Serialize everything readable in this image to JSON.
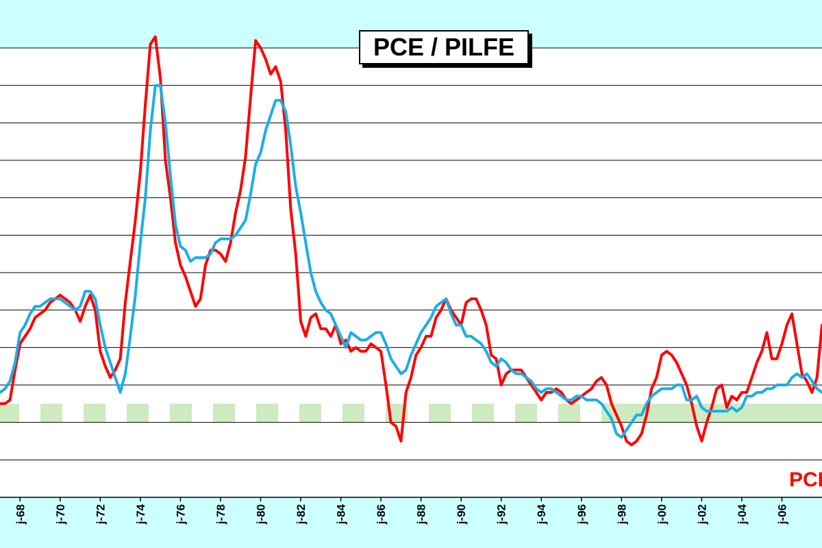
{
  "chart_data": {
    "type": "line",
    "title": "PCE / PILFE",
    "xlabel": "",
    "ylabel": "",
    "xlim": [
      1967.0,
      2008.0
    ],
    "ylim": [
      -1,
      11
    ],
    "grid": true,
    "tick_labels": [
      "j-68",
      "j-70",
      "j-72",
      "j-74",
      "j-76",
      "j-78",
      "j-80",
      "j-82",
      "j-84",
      "j-86",
      "j-88",
      "j-90",
      "j-92",
      "j-94",
      "j-96",
      "j-98",
      "j-00",
      "j-02",
      "j-04",
      "j-06"
    ],
    "tick_positions": [
      1968,
      1970,
      1972,
      1974,
      1976,
      1978,
      1980,
      1982,
      1984,
      1986,
      1988,
      1990,
      1992,
      1994,
      1996,
      1998,
      2000,
      2002,
      2004,
      2006
    ],
    "target_band": [
      1.0,
      1.5
    ],
    "series": [
      {
        "name": "PCE",
        "color": "#ff0000",
        "x": [
          1967.0,
          1967.25,
          1967.5,
          1967.75,
          1968.0,
          1968.25,
          1968.5,
          1968.75,
          1969.0,
          1969.25,
          1969.5,
          1969.75,
          1970.0,
          1970.25,
          1970.5,
          1970.75,
          1971.0,
          1971.25,
          1971.5,
          1971.75,
          1972.0,
          1972.25,
          1972.5,
          1972.75,
          1973.0,
          1973.25,
          1973.5,
          1973.75,
          1974.0,
          1974.25,
          1974.5,
          1974.75,
          1975.0,
          1975.25,
          1975.5,
          1975.75,
          1976.0,
          1976.25,
          1976.5,
          1976.75,
          1977.0,
          1977.25,
          1977.5,
          1977.75,
          1978.0,
          1978.25,
          1978.5,
          1978.75,
          1979.0,
          1979.25,
          1979.5,
          1979.75,
          1980.0,
          1980.25,
          1980.5,
          1980.75,
          1981.0,
          1981.25,
          1981.5,
          1981.75,
          1982.0,
          1982.25,
          1982.5,
          1982.75,
          1983.0,
          1983.25,
          1983.5,
          1983.75,
          1984.0,
          1984.25,
          1984.5,
          1984.75,
          1985.0,
          1985.25,
          1985.5,
          1985.75,
          1986.0,
          1986.25,
          1986.5,
          1986.75,
          1987.0,
          1987.25,
          1987.5,
          1987.75,
          1988.0,
          1988.25,
          1988.5,
          1988.75,
          1989.0,
          1989.25,
          1989.5,
          1989.75,
          1990.0,
          1990.25,
          1990.5,
          1990.75,
          1991.0,
          1991.25,
          1991.5,
          1991.75,
          1992.0,
          1992.25,
          1992.5,
          1992.75,
          1993.0,
          1993.25,
          1993.5,
          1993.75,
          1994.0,
          1994.25,
          1994.5,
          1994.75,
          1995.0,
          1995.25,
          1995.5,
          1995.75,
          1996.0,
          1996.25,
          1996.5,
          1996.75,
          1997.0,
          1997.25,
          1997.5,
          1997.75,
          1998.0,
          1998.25,
          1998.5,
          1998.75,
          1999.0,
          1999.25,
          1999.5,
          1999.75,
          2000.0,
          2000.25,
          2000.5,
          2000.75,
          2001.0,
          2001.25,
          2001.5,
          2001.75,
          2002.0,
          2002.25,
          2002.5,
          2002.75,
          2003.0,
          2003.25,
          2003.5,
          2003.75,
          2004.0,
          2004.25,
          2004.5,
          2004.75,
          2005.0,
          2005.25,
          2005.5,
          2005.75,
          2006.0,
          2006.25,
          2006.5,
          2006.75,
          2007.0,
          2007.25,
          2007.5,
          2007.75,
          2008.0
        ],
        "values": [
          1.5,
          1.5,
          1.6,
          2.4,
          3.1,
          3.3,
          3.5,
          3.8,
          3.9,
          4.0,
          4.2,
          4.3,
          4.4,
          4.3,
          4.2,
          4.0,
          3.7,
          4.1,
          4.4,
          4.0,
          2.9,
          2.5,
          2.2,
          2.4,
          2.7,
          4.2,
          5.3,
          6.4,
          7.7,
          9.5,
          11.1,
          11.3,
          10.2,
          8.0,
          7.0,
          5.8,
          5.2,
          4.9,
          4.5,
          4.1,
          4.3,
          5.2,
          5.6,
          5.6,
          5.5,
          5.3,
          5.8,
          6.6,
          7.2,
          8.1,
          9.7,
          11.2,
          11.0,
          10.7,
          10.3,
          10.5,
          10.1,
          8.8,
          6.7,
          5.5,
          3.7,
          3.3,
          3.8,
          3.9,
          3.5,
          3.5,
          3.3,
          3.6,
          3.1,
          3.2,
          2.9,
          3.0,
          2.9,
          2.9,
          3.1,
          3.0,
          2.9,
          2.0,
          1.0,
          0.9,
          0.5,
          1.8,
          2.2,
          2.8,
          3.0,
          3.3,
          3.3,
          3.8,
          4.0,
          4.3,
          4.0,
          3.8,
          3.6,
          4.2,
          4.3,
          4.3,
          4.0,
          3.6,
          2.8,
          2.7,
          2.0,
          2.3,
          2.4,
          2.4,
          2.4,
          2.2,
          2.0,
          1.8,
          1.6,
          1.8,
          1.8,
          1.9,
          1.8,
          1.6,
          1.5,
          1.6,
          1.7,
          1.8,
          1.9,
          2.1,
          2.2,
          2.0,
          1.5,
          1.2,
          0.9,
          0.5,
          0.4,
          0.5,
          0.7,
          1.2,
          1.9,
          2.2,
          2.8,
          2.9,
          2.8,
          2.6,
          2.3,
          2.0,
          1.5,
          0.9,
          0.5,
          1.0,
          1.4,
          1.9,
          2.0,
          1.4,
          1.7,
          1.6,
          1.8,
          1.8,
          2.2,
          2.6,
          2.9,
          3.4,
          2.7,
          2.7,
          3.1,
          3.6,
          3.9,
          3.1,
          2.3,
          2.1,
          1.8,
          2.2,
          3.6
        ]
      },
      {
        "name": "PILFE",
        "color": "#1aaee6",
        "x": [
          1967.0,
          1967.25,
          1967.5,
          1967.75,
          1968.0,
          1968.25,
          1968.5,
          1968.75,
          1969.0,
          1969.25,
          1969.5,
          1969.75,
          1970.0,
          1970.25,
          1970.5,
          1970.75,
          1971.0,
          1971.25,
          1971.5,
          1971.75,
          1972.0,
          1972.25,
          1972.5,
          1972.75,
          1973.0,
          1973.25,
          1973.5,
          1973.75,
          1974.0,
          1974.25,
          1974.5,
          1974.75,
          1975.0,
          1975.25,
          1975.5,
          1975.75,
          1976.0,
          1976.25,
          1976.5,
          1976.75,
          1977.0,
          1977.25,
          1977.5,
          1977.75,
          1978.0,
          1978.25,
          1978.5,
          1978.75,
          1979.0,
          1979.25,
          1979.5,
          1979.75,
          1980.0,
          1980.25,
          1980.5,
          1980.75,
          1981.0,
          1981.25,
          1981.5,
          1981.75,
          1982.0,
          1982.25,
          1982.5,
          1982.75,
          1983.0,
          1983.25,
          1983.5,
          1983.75,
          1984.0,
          1984.25,
          1984.5,
          1984.75,
          1985.0,
          1985.25,
          1985.5,
          1985.75,
          1986.0,
          1986.25,
          1986.5,
          1986.75,
          1987.0,
          1987.25,
          1987.5,
          1987.75,
          1988.0,
          1988.25,
          1988.5,
          1988.75,
          1989.0,
          1989.25,
          1989.5,
          1989.75,
          1990.0,
          1990.25,
          1990.5,
          1990.75,
          1991.0,
          1991.25,
          1991.5,
          1991.75,
          1992.0,
          1992.25,
          1992.5,
          1992.75,
          1993.0,
          1993.25,
          1993.5,
          1993.75,
          1994.0,
          1994.25,
          1994.5,
          1994.75,
          1995.0,
          1995.25,
          1995.5,
          1995.75,
          1996.0,
          1996.25,
          1996.5,
          1996.75,
          1997.0,
          1997.25,
          1997.5,
          1997.75,
          1998.0,
          1998.25,
          1998.5,
          1998.75,
          1999.0,
          1999.25,
          1999.5,
          1999.75,
          2000.0,
          2000.25,
          2000.5,
          2000.75,
          2001.0,
          2001.25,
          2001.5,
          2001.75,
          2002.0,
          2002.25,
          2002.5,
          2002.75,
          2003.0,
          2003.25,
          2003.5,
          2003.75,
          2004.0,
          2004.25,
          2004.5,
          2004.75,
          2005.0,
          2005.25,
          2005.5,
          2005.75,
          2006.0,
          2006.25,
          2006.5,
          2006.75,
          2007.0,
          2007.25,
          2007.5,
          2007.75,
          2008.0
        ],
        "values": [
          1.8,
          1.9,
          2.1,
          2.6,
          3.4,
          3.6,
          3.9,
          4.1,
          4.1,
          4.2,
          4.3,
          4.3,
          4.3,
          4.2,
          4.1,
          4.0,
          4.1,
          4.5,
          4.5,
          4.3,
          3.6,
          3.0,
          2.6,
          2.2,
          1.8,
          2.3,
          3.3,
          4.4,
          5.8,
          7.0,
          8.8,
          10.0,
          10.0,
          9.0,
          7.6,
          6.3,
          5.7,
          5.6,
          5.3,
          5.4,
          5.4,
          5.4,
          5.5,
          5.8,
          5.9,
          5.9,
          5.9,
          6.0,
          6.2,
          6.4,
          7.1,
          7.9,
          8.2,
          8.8,
          9.2,
          9.6,
          9.6,
          9.3,
          8.4,
          7.3,
          6.6,
          5.8,
          5.0,
          4.5,
          4.2,
          4.0,
          3.9,
          3.6,
          3.3,
          3.0,
          3.4,
          3.3,
          3.2,
          3.2,
          3.3,
          3.4,
          3.4,
          3.1,
          2.7,
          2.5,
          2.3,
          2.4,
          2.8,
          3.1,
          3.4,
          3.6,
          3.8,
          4.1,
          4.2,
          4.3,
          3.9,
          3.6,
          3.6,
          3.3,
          3.3,
          3.2,
          3.1,
          2.9,
          2.6,
          2.5,
          2.7,
          2.6,
          2.4,
          2.3,
          2.3,
          2.2,
          2.1,
          1.9,
          1.8,
          1.9,
          1.9,
          1.8,
          1.7,
          1.6,
          1.6,
          1.7,
          1.7,
          1.6,
          1.6,
          1.6,
          1.5,
          1.3,
          1.1,
          0.7,
          0.6,
          0.8,
          1.0,
          1.2,
          1.2,
          1.5,
          1.7,
          1.8,
          1.9,
          1.9,
          1.9,
          2.0,
          2.0,
          1.6,
          1.6,
          1.7,
          1.4,
          1.3,
          1.3,
          1.3,
          1.3,
          1.3,
          1.4,
          1.3,
          1.4,
          1.7,
          1.7,
          1.8,
          1.8,
          1.9,
          1.9,
          2.0,
          2.0,
          2.0,
          2.2,
          2.3,
          2.2,
          2.3,
          2.1,
          1.9,
          1.8
        ]
      }
    ],
    "series_labels": {
      "pce": "PCE"
    }
  }
}
